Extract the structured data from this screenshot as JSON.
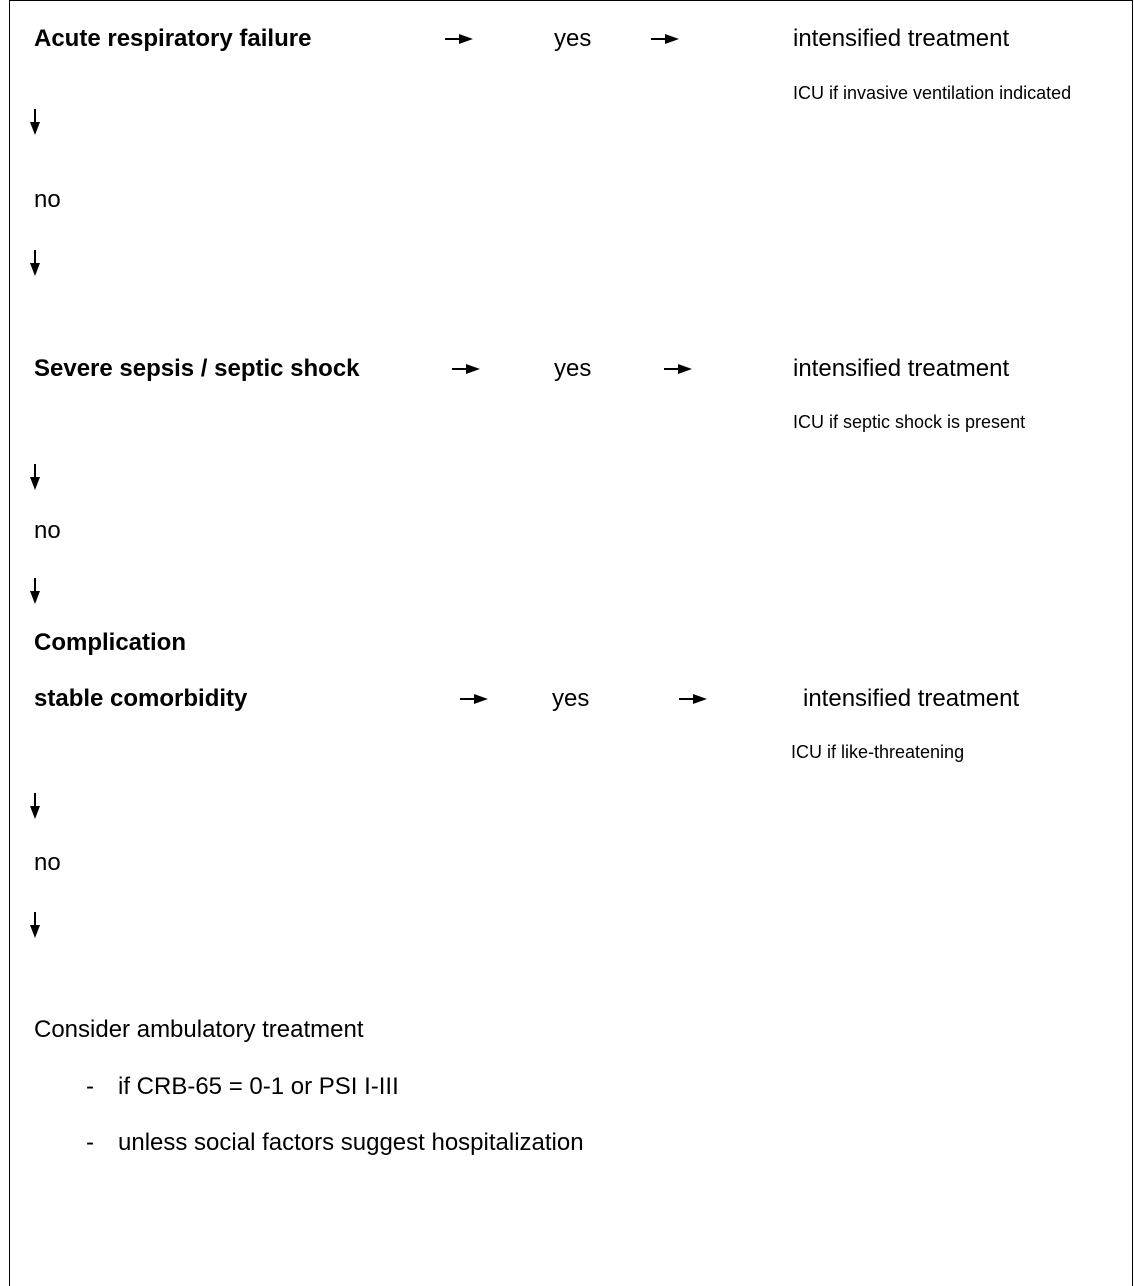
{
  "steps": [
    {
      "condition": "Acute respiratory failure",
      "answer_yes": "yes",
      "outcome": "intensified treatment",
      "note": "ICU if invasive ventilation indicated",
      "answer_no": "no"
    },
    {
      "condition": "Severe sepsis / septic shock",
      "answer_yes": "yes",
      "outcome": "intensified treatment",
      "note": "ICU if septic shock is present",
      "answer_no": "no"
    },
    {
      "condition_line1": "Complication",
      "condition_line2": "stable comorbidity",
      "answer_yes": "yes",
      "outcome": "intensified treatment",
      "note": "ICU if like-threatening",
      "answer_no": "no"
    }
  ],
  "final": {
    "title": "Consider ambulatory treatment",
    "bullets": [
      {
        "marker": "-",
        "text": "if CRB-65 = 0-1 or PSI I-III"
      },
      {
        "marker": "-",
        "text": "unless social factors suggest hospitalization"
      }
    ]
  }
}
